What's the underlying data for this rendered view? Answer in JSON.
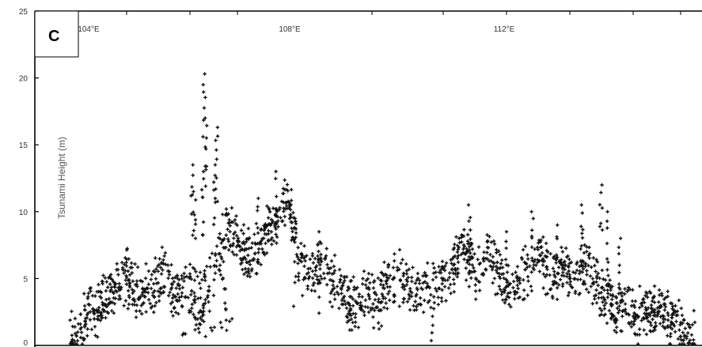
{
  "chart_data": {
    "type": "scatter",
    "panel_label": "C",
    "title": "",
    "ylabel": "Tsunami Height (m)",
    "ylim": [
      0,
      25
    ],
    "y_ticks": [
      0,
      5,
      10,
      15,
      20,
      25
    ],
    "x_ticks": [
      "104°E",
      "108°E",
      "112°E"
    ],
    "grid": false,
    "marker": "+",
    "marker_color": "#111111",
    "profile": [
      [
        0.0,
        0.4
      ],
      [
        0.01,
        0.7
      ],
      [
        0.03,
        2.5
      ],
      [
        0.05,
        3.0
      ],
      [
        0.07,
        4.2
      ],
      [
        0.09,
        5.5
      ],
      [
        0.11,
        4.0
      ],
      [
        0.13,
        4.5
      ],
      [
        0.15,
        5.5
      ],
      [
        0.17,
        3.5
      ],
      [
        0.19,
        5.0
      ],
      [
        0.21,
        3.0
      ],
      [
        0.23,
        5.5
      ],
      [
        0.25,
        9.0
      ],
      [
        0.27,
        8.0
      ],
      [
        0.29,
        6.5
      ],
      [
        0.31,
        8.0
      ],
      [
        0.33,
        9.5
      ],
      [
        0.35,
        11.0
      ],
      [
        0.37,
        6.0
      ],
      [
        0.39,
        6.0
      ],
      [
        0.41,
        6.0
      ],
      [
        0.43,
        4.5
      ],
      [
        0.45,
        3.0
      ],
      [
        0.47,
        4.0
      ],
      [
        0.49,
        3.0
      ],
      [
        0.51,
        4.8
      ],
      [
        0.53,
        5.2
      ],
      [
        0.55,
        4.0
      ],
      [
        0.57,
        4.5
      ],
      [
        0.59,
        4.8
      ],
      [
        0.61,
        5.5
      ],
      [
        0.63,
        7.8
      ],
      [
        0.65,
        5.0
      ],
      [
        0.67,
        7.0
      ],
      [
        0.69,
        5.0
      ],
      [
        0.71,
        4.5
      ],
      [
        0.73,
        5.5
      ],
      [
        0.75,
        7.0
      ],
      [
        0.77,
        5.5
      ],
      [
        0.79,
        6.0
      ],
      [
        0.81,
        5.0
      ],
      [
        0.83,
        6.0
      ],
      [
        0.85,
        4.0
      ],
      [
        0.87,
        3.0
      ],
      [
        0.89,
        2.5
      ],
      [
        0.91,
        2.3
      ],
      [
        0.93,
        2.8
      ],
      [
        0.95,
        2.5
      ],
      [
        0.97,
        1.5
      ],
      [
        0.99,
        0.8
      ],
      [
        1.0,
        0.5
      ]
    ],
    "peaks": [
      [
        0.215,
        20.3
      ],
      [
        0.218,
        17.0
      ],
      [
        0.213,
        13.0
      ],
      [
        0.235,
        16.3
      ],
      [
        0.232,
        13.5
      ],
      [
        0.196,
        13.5
      ],
      [
        0.2,
        11.5
      ],
      [
        0.33,
        13.0
      ],
      [
        0.3,
        11.0
      ],
      [
        0.36,
        9.5
      ],
      [
        0.4,
        8.5
      ],
      [
        0.64,
        10.5
      ],
      [
        0.82,
        10.5
      ],
      [
        0.74,
        10.0
      ],
      [
        0.85,
        12.0
      ],
      [
        0.86,
        10.0
      ],
      [
        0.88,
        8.0
      ],
      [
        0.78,
        9.0
      ],
      [
        0.7,
        8.5
      ],
      [
        0.58,
        1.5
      ]
    ]
  }
}
